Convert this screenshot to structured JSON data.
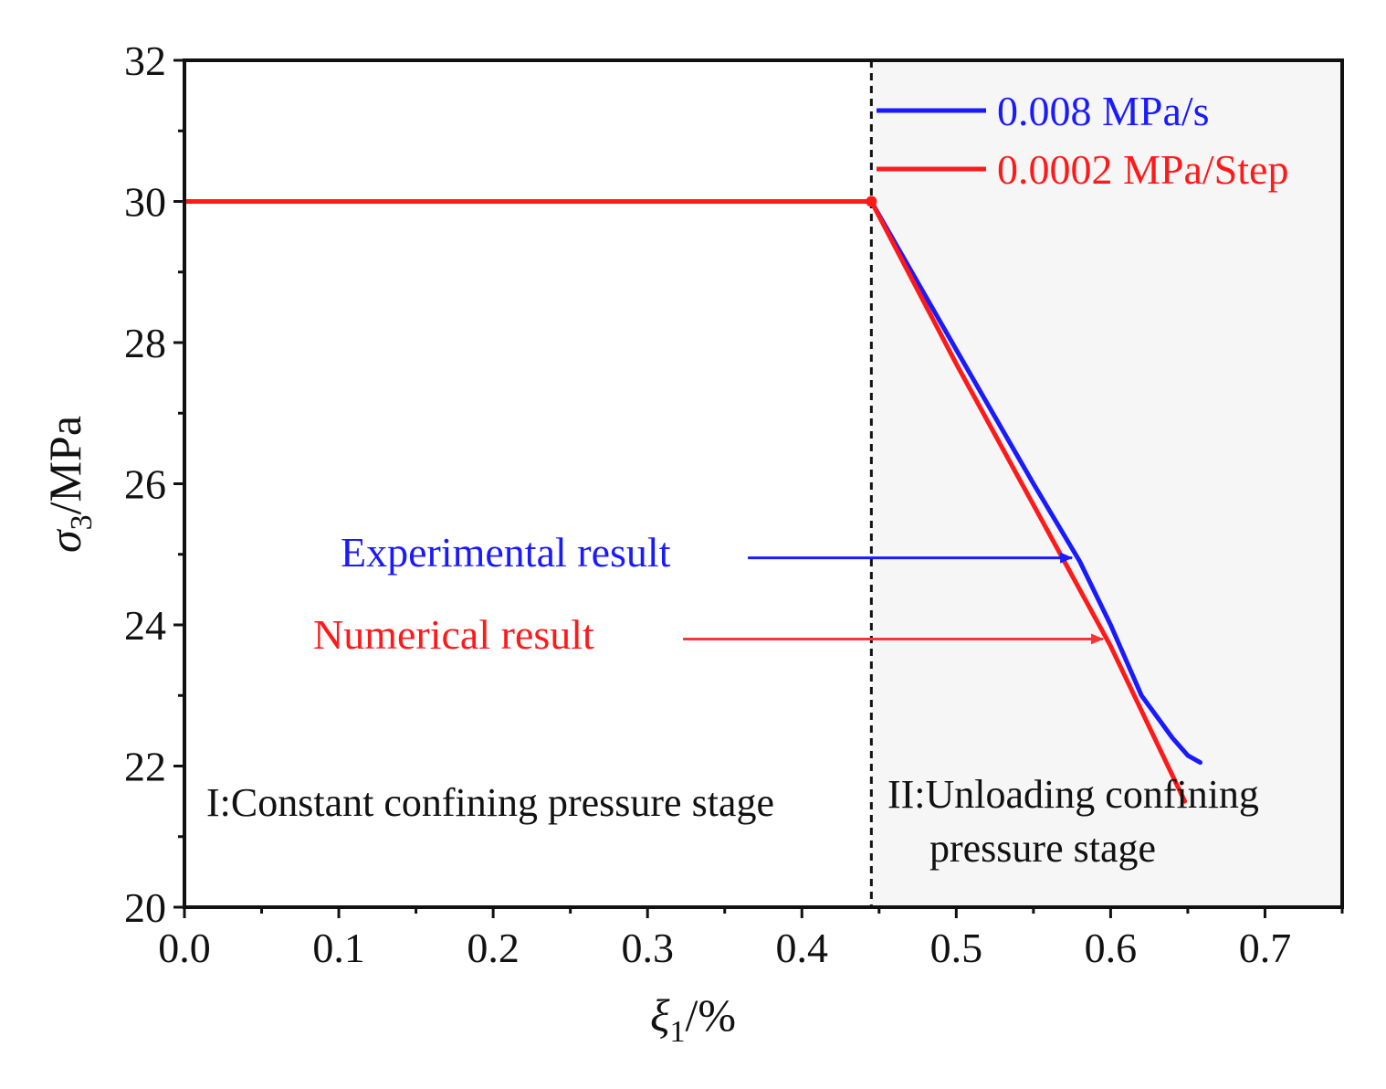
{
  "chart_data": {
    "type": "line",
    "x_axis": {
      "label_symbol": "ξ",
      "label_sub": "1",
      "label_suffix": "/%",
      "range": [
        0.0,
        0.75
      ],
      "ticks": [
        0.0,
        0.1,
        0.2,
        0.3,
        0.4,
        0.5,
        0.6,
        0.7
      ],
      "tick_labels": [
        "0.0",
        "0.1",
        "0.2",
        "0.3",
        "0.4",
        "0.5",
        "0.6",
        "0.7"
      ]
    },
    "y_axis": {
      "label_symbol": "σ",
      "label_sub": "3",
      "label_suffix": "/MPa",
      "range": [
        20,
        32
      ],
      "ticks": [
        20,
        22,
        24,
        26,
        28,
        30,
        32
      ],
      "tick_labels": [
        "20",
        "22",
        "24",
        "26",
        "28",
        "30",
        "32"
      ]
    },
    "divider_x": 0.445,
    "series": [
      {
        "name": "0.008 MPa/s",
        "color": "#1a1aff",
        "x": [
          0.0,
          0.445,
          0.5,
          0.55,
          0.58,
          0.6,
          0.62,
          0.64,
          0.65,
          0.658
        ],
        "y": [
          30.0,
          30.0,
          27.9,
          26.0,
          24.9,
          24.0,
          23.0,
          22.4,
          22.15,
          22.05
        ]
      },
      {
        "name": "0.0002 MPa/Step",
        "color": "#ff1a1a",
        "x": [
          0.0,
          0.445,
          0.5,
          0.55,
          0.6,
          0.648
        ],
        "y": [
          30.0,
          30.0,
          27.7,
          25.7,
          23.7,
          21.5
        ]
      }
    ],
    "legend": {
      "position": "top-right",
      "entries": [
        "0.008 MPa/s",
        "0.0002 MPa/Step"
      ]
    },
    "annotations": {
      "experimental": {
        "text": "Experimental result",
        "color": "#1a1aff",
        "arrow_from": [
          0.365,
          24.95
        ],
        "arrow_to": [
          0.575,
          24.95
        ]
      },
      "numerical": {
        "text": "Numerical result",
        "color": "#ff3333",
        "arrow_from": [
          0.323,
          23.8
        ],
        "arrow_to": [
          0.595,
          23.8
        ]
      },
      "stage1": "I:Constant confining pressure stage",
      "stage2_line1": "II:Unloading confining",
      "stage2_line2": "pressure  stage"
    }
  }
}
